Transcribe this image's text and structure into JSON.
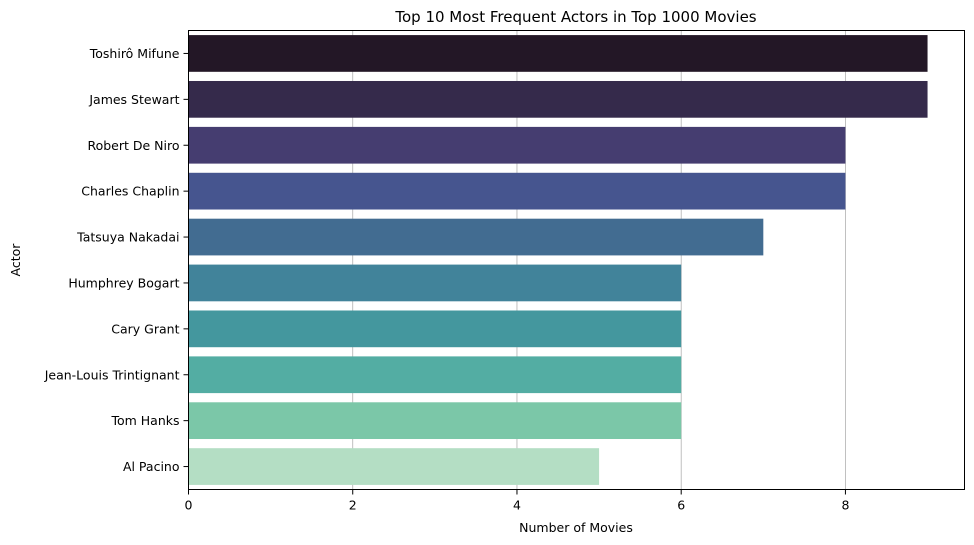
{
  "chart_data": {
    "type": "bar",
    "orientation": "horizontal",
    "title": "Top 10 Most Frequent Actors in Top 1000 Movies",
    "xlabel": "Number of Movies",
    "ylabel": "Actor",
    "categories": [
      "Toshirô Mifune",
      "James Stewart",
      "Robert De Niro",
      "Charles Chaplin",
      "Tatsuya Nakadai",
      "Humphrey Bogart",
      "Cary Grant",
      "Jean-Louis Trintignant",
      "Tom Hanks",
      "Al Pacino"
    ],
    "values": [
      9,
      9,
      8,
      8,
      7,
      6,
      6,
      6,
      6,
      5
    ],
    "colors": [
      "#231726",
      "#352a4b",
      "#453d70",
      "#46558f",
      "#426c91",
      "#41839a",
      "#44979e",
      "#53ada3",
      "#7bc7a8",
      "#b4dec4"
    ],
    "xlim": [
      0,
      9.45
    ],
    "xticks": [
      0,
      2,
      4,
      6,
      8
    ],
    "grid": "x",
    "legend": "none"
  }
}
